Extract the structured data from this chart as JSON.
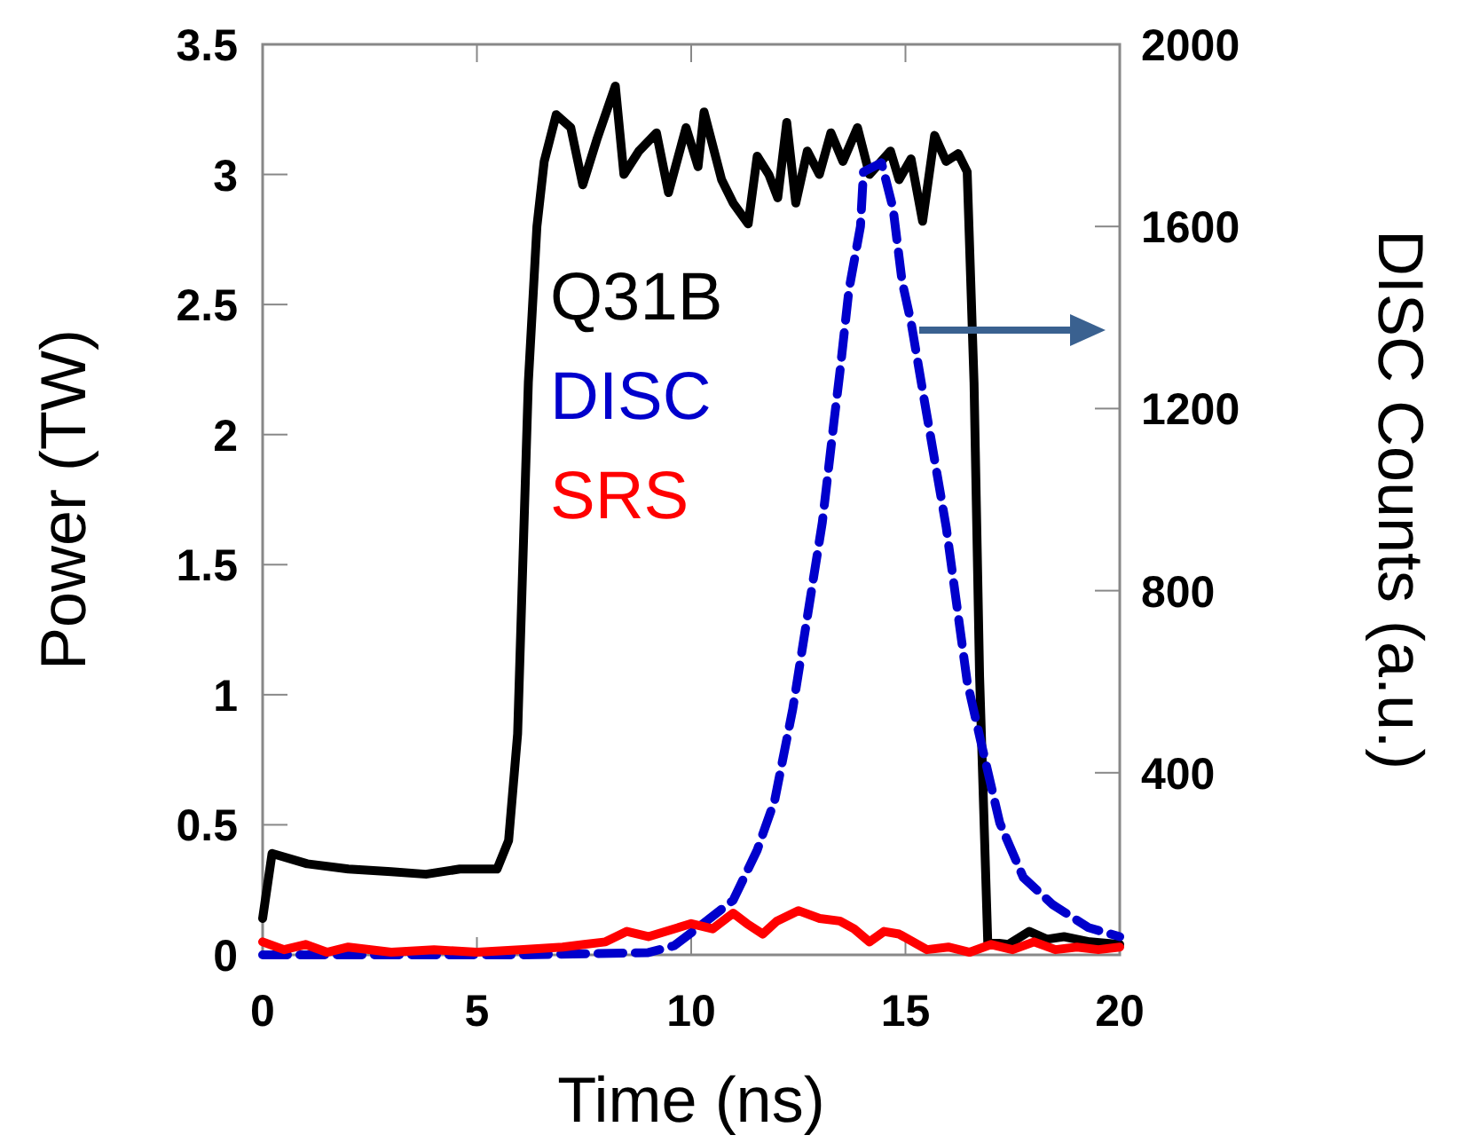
{
  "chart_data": {
    "type": "line",
    "xlabel": "Time (ns)",
    "ylabel": "Power (TW)",
    "y2label": "DISC Counts (a.u.)",
    "xlim": [
      0,
      20
    ],
    "xticks": [
      0,
      5,
      10,
      15,
      20
    ],
    "ylim": [
      0,
      3.5
    ],
    "yticks": [
      0,
      0.5,
      1,
      1.5,
      2,
      2.5,
      3,
      3.5
    ],
    "y2lim": [
      0,
      2000
    ],
    "y2ticks": [
      {
        "value": 0,
        "label": null
      },
      400,
      800,
      1200,
      1600,
      2000
    ],
    "legend": "left",
    "marker": "none",
    "series": [
      {
        "name": "Q31B",
        "color": "#000000",
        "line_style": "solid",
        "x": [
          0,
          0.22,
          1.04,
          2,
          3,
          3.81,
          4.6,
          5.47,
          5.74,
          5.95,
          6.2,
          6.4,
          6.57,
          6.85,
          7.19,
          7.47,
          7.81,
          8.23,
          8.43,
          8.78,
          9.19,
          9.47,
          9.88,
          10.16,
          10.3,
          10.71,
          10.98,
          11.33,
          11.54,
          11.81,
          12.02,
          12.23,
          12.44,
          12.71,
          12.99,
          13.26,
          13.54,
          13.88,
          14.16,
          14.65,
          14.85,
          15.13,
          15.4,
          15.68,
          15.95,
          16.23,
          16.44,
          16.6,
          16.73,
          16.92,
          17.4,
          17.89,
          18.3,
          18.7,
          19.3,
          20
        ],
        "values": [
          0.14,
          0.39,
          0.35,
          0.33,
          0.32,
          0.31,
          0.33,
          0.33,
          0.44,
          0.85,
          2.2,
          2.8,
          3.05,
          3.23,
          3.18,
          2.96,
          3.14,
          3.34,
          3,
          3.09,
          3.16,
          2.93,
          3.18,
          3.03,
          3.24,
          2.98,
          2.89,
          2.81,
          3.07,
          3,
          2.91,
          3.2,
          2.89,
          3.09,
          3,
          3.16,
          3.05,
          3.18,
          3,
          3.09,
          2.98,
          3.06,
          2.82,
          3.15,
          3.05,
          3.08,
          3.01,
          2.2,
          1.07,
          0.05,
          0.04,
          0.09,
          0.06,
          0.07,
          0.05,
          0.04
        ]
      },
      {
        "name": "DISC",
        "color": "#0000cc",
        "line_style": "dashed",
        "axis": "y2",
        "x": [
          0,
          3,
          6,
          9,
          9.6,
          10.16,
          10.98,
          11.54,
          11.95,
          12.37,
          13.06,
          13.33,
          13.47,
          13.68,
          13.95,
          14.02,
          14.44,
          14.71,
          14.92,
          15.13,
          15.4,
          15.95,
          16.44,
          16.78,
          17.2,
          17.75,
          18.44,
          19.27,
          20
        ],
        "values": [
          0,
          0,
          0,
          5,
          20,
          60,
          120,
          230,
          340,
          540,
          950,
          1170,
          1280,
          1460,
          1600,
          1720,
          1740,
          1640,
          1480,
          1390,
          1240,
          940,
          600,
          460,
          290,
          170,
          110,
          60,
          40
        ]
      },
      {
        "name": "SRS",
        "color": "#ff0000",
        "line_style": "solid",
        "x": [
          0,
          0.5,
          1,
          1.5,
          2,
          3,
          4,
          5,
          6,
          7,
          7.5,
          8,
          8.5,
          9,
          9.6,
          10,
          10.5,
          10.98,
          11.3,
          11.67,
          12,
          12.5,
          13,
          13.47,
          13.8,
          14.16,
          14.5,
          14.85,
          15.5,
          16,
          16.5,
          17,
          17.5,
          18,
          18.5,
          19,
          19.5,
          20
        ],
        "values": [
          0.05,
          0.02,
          0.04,
          0.01,
          0.03,
          0.01,
          0.02,
          0.01,
          0.02,
          0.03,
          0.04,
          0.05,
          0.09,
          0.07,
          0.1,
          0.12,
          0.1,
          0.16,
          0.12,
          0.08,
          0.13,
          0.17,
          0.14,
          0.13,
          0.1,
          0.05,
          0.09,
          0.08,
          0.02,
          0.03,
          0.01,
          0.04,
          0.02,
          0.05,
          0.02,
          0.03,
          0.02,
          0.03
        ]
      }
    ]
  }
}
